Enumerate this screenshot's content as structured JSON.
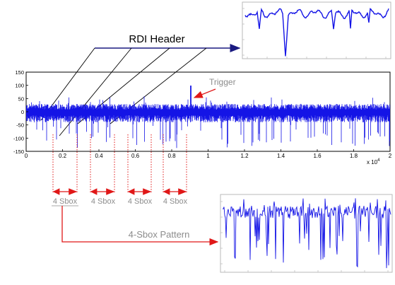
{
  "labels": {
    "rdi_header": "RDI Header",
    "trigger": "Trigger",
    "sbox_pattern": "4-Sbox Pattern",
    "sbox_segments": [
      "4 Sbox",
      "4 Sbox",
      "4 Sbox",
      "4 Sbox"
    ]
  },
  "main_plot": {
    "y_ticks": [
      "150",
      "100",
      "50",
      "0",
      "-50",
      "-100",
      "-150"
    ],
    "x_ticks": [
      "0",
      "0.2",
      "0.4",
      "0.6",
      "0.8",
      "1",
      "1.2",
      "1.4",
      "1.6",
      "1.8",
      "2"
    ],
    "x_exponent": "x 10",
    "x_exponent_power": "4"
  },
  "colors": {
    "trace": "#1414e6",
    "header_arrow": "#1a1a80",
    "trigger_arrow": "#e01818",
    "sbox_marker": "#e01818",
    "label_gray": "#8c8c8c",
    "frame": "#000000"
  }
}
